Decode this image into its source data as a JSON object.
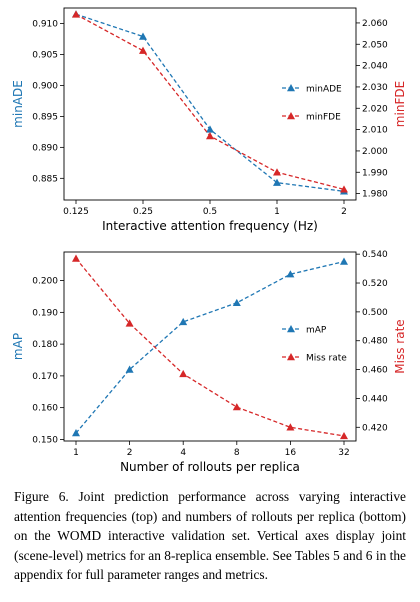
{
  "chart_data": [
    {
      "type": "line",
      "xlabel": "Interactive attention frequency (Hz)",
      "x_scale": "log2",
      "xlim": [
        0.125,
        2
      ],
      "x_ticks": [
        0.125,
        0.25,
        0.5,
        1,
        2
      ],
      "x_tick_labels": [
        "0.125",
        "0.25",
        "0.5",
        "1",
        "2"
      ],
      "x": [
        0.125,
        0.25,
        0.5,
        1,
        2
      ],
      "grid": false,
      "legend_position": "right",
      "y_left": {
        "label": "minADE",
        "color": "#1f77b4",
        "ylim": [
          0.8815,
          0.9125
        ],
        "ticks": [
          0.885,
          0.89,
          0.895,
          0.9,
          0.905,
          0.91
        ],
        "tick_labels": [
          "0.885",
          "0.890",
          "0.895",
          "0.900",
          "0.905",
          "0.910"
        ]
      },
      "y_right": {
        "label": "minFDE",
        "color": "#d62728",
        "ylim": [
          1.977,
          2.067
        ],
        "ticks": [
          1.98,
          1.99,
          2.0,
          2.01,
          2.02,
          2.03,
          2.04,
          2.05,
          2.06
        ],
        "tick_labels": [
          "1.980",
          "1.990",
          "2.000",
          "2.010",
          "2.020",
          "2.030",
          "2.040",
          "2.050",
          "2.060"
        ]
      },
      "series": [
        {
          "name": "minADE",
          "axis": "left",
          "color": "#1f77b4",
          "values": [
            0.9115,
            0.9079,
            0.8929,
            0.8843,
            0.8829
          ]
        },
        {
          "name": "minFDE",
          "axis": "right",
          "color": "#d62728",
          "values": [
            2.064,
            2.047,
            2.007,
            1.99,
            1.982
          ]
        }
      ]
    },
    {
      "type": "line",
      "xlabel": "Number of rollouts per replica",
      "x_scale": "log2",
      "xlim": [
        1,
        32
      ],
      "x_ticks": [
        1,
        2,
        4,
        8,
        16,
        32
      ],
      "x_tick_labels": [
        "1",
        "2",
        "4",
        "8",
        "16",
        "32"
      ],
      "x": [
        1,
        2,
        4,
        8,
        16,
        32
      ],
      "grid": false,
      "legend_position": "right",
      "y_left": {
        "label": "mAP",
        "color": "#1f77b4",
        "ylim": [
          0.1495,
          0.209
        ],
        "ticks": [
          0.15,
          0.16,
          0.17,
          0.18,
          0.19,
          0.2
        ],
        "tick_labels": [
          "0.150",
          "0.160",
          "0.170",
          "0.180",
          "0.190",
          "0.200"
        ]
      },
      "y_right": {
        "label": "Miss rate",
        "color": "#d62728",
        "ylim": [
          0.4105,
          0.5415
        ],
        "ticks": [
          0.42,
          0.44,
          0.46,
          0.48,
          0.5,
          0.52,
          0.54
        ],
        "tick_labels": [
          "0.420",
          "0.440",
          "0.460",
          "0.480",
          "0.500",
          "0.520",
          "0.540"
        ]
      },
      "series": [
        {
          "name": "mAP",
          "axis": "left",
          "color": "#1f77b4",
          "values": [
            0.152,
            0.172,
            0.187,
            0.193,
            0.202,
            0.206
          ]
        },
        {
          "name": "Miss rate",
          "axis": "right",
          "color": "#d62728",
          "values": [
            0.537,
            0.492,
            0.457,
            0.434,
            0.42,
            0.414
          ]
        }
      ]
    }
  ],
  "caption": "Figure 6. Joint prediction performance across varying interactive attention frequencies (top) and numbers of rollouts per replica (bottom) on the WOMD interactive validation set. Vertical axes display joint (scene-level) metrics for an 8-replica ensemble. See Tables 5 and 6 in the appendix for full parameter ranges and metrics."
}
